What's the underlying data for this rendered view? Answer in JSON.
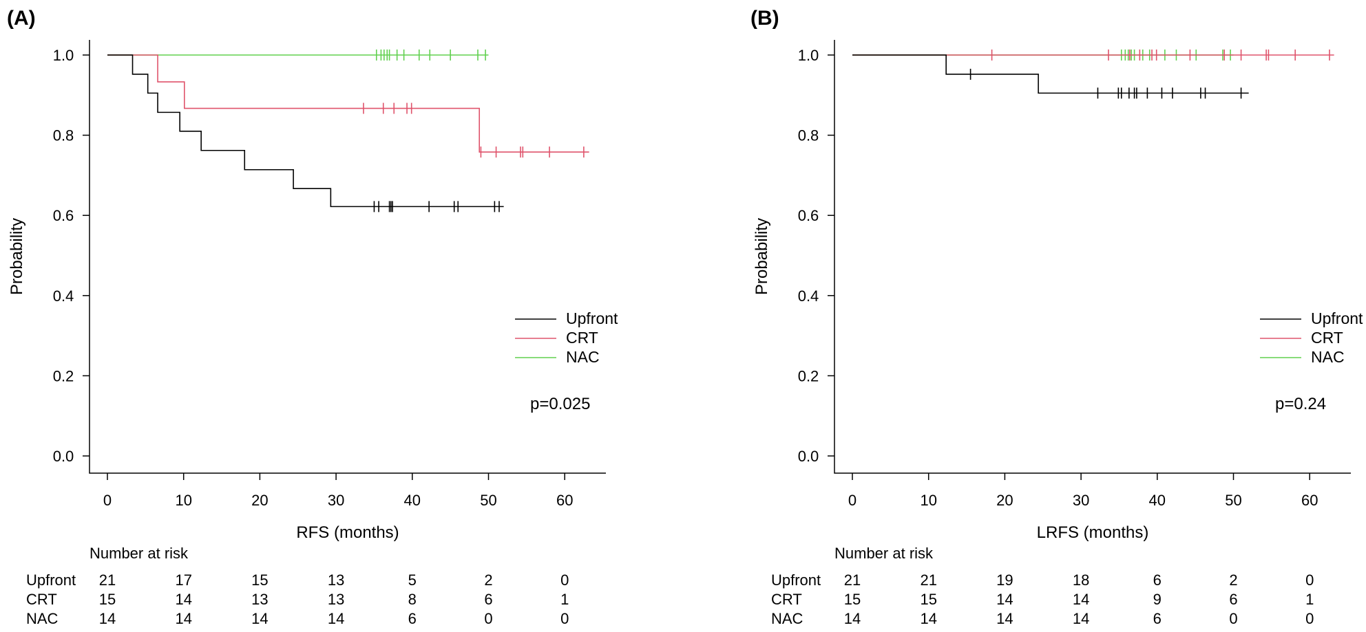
{
  "colors": {
    "Upfront": "#000000",
    "CRT": "#df536b",
    "NAC": "#61d04f"
  },
  "chart_data": [
    {
      "type": "line",
      "panel_label": "(A)",
      "xlabel": "RFS (months)",
      "ylabel": "Probability",
      "xlim": [
        0,
        65
      ],
      "ylim": [
        0,
        1.0
      ],
      "x_ticks": [
        "0",
        "10",
        "20",
        "30",
        "40",
        "50",
        "60"
      ],
      "y_ticks": [
        "0.0",
        "0.2",
        "0.4",
        "0.6",
        "0.8",
        "1.0"
      ],
      "p_value": "p=0.025",
      "legend": [
        "Upfront",
        "CRT",
        "NAC"
      ],
      "legend_position": "right",
      "series": [
        {
          "name": "Upfront",
          "steps": [
            [
              0,
              1.0
            ],
            [
              3.3,
              0.952
            ],
            [
              5.3,
              0.905
            ],
            [
              6.6,
              0.857
            ],
            [
              9.5,
              0.81
            ],
            [
              12.3,
              0.762
            ],
            [
              18,
              0.714
            ],
            [
              24.4,
              0.667
            ],
            [
              29.3,
              0.622
            ]
          ],
          "end": 52,
          "censors": [
            35,
            35.6,
            37,
            37.2,
            37.4,
            42.2,
            45.5,
            46,
            50.8,
            51.4
          ]
        },
        {
          "name": "CRT",
          "steps": [
            [
              0,
              1.0
            ],
            [
              6.6,
              0.933
            ],
            [
              10.1,
              0.867
            ],
            [
              48.8,
              0.758
            ]
          ],
          "end": 63.2,
          "censors": [
            33.6,
            36.2,
            37.6,
            39.3,
            39.9,
            49,
            51,
            54.2,
            54.5,
            58,
            62.5
          ]
        },
        {
          "name": "NAC",
          "steps": [
            [
              0,
              1.0
            ]
          ],
          "end": 50,
          "censors": [
            35.3,
            35.9,
            36.3,
            36.7,
            37,
            38,
            38.9,
            40.9,
            42.3,
            45,
            48.6,
            49.6
          ]
        }
      ],
      "risk_table": {
        "title": "Number at risk",
        "rows": [
          {
            "name": "Upfront",
            "values": [
              "21",
              "17",
              "15",
              "13",
              "5",
              "2",
              "0"
            ]
          },
          {
            "name": "CRT",
            "values": [
              "15",
              "14",
              "13",
              "13",
              "8",
              "6",
              "1"
            ]
          },
          {
            "name": "NAC",
            "values": [
              "14",
              "14",
              "14",
              "14",
              "6",
              "0",
              "0"
            ]
          }
        ]
      }
    },
    {
      "type": "line",
      "panel_label": "(B)",
      "xlabel": "LRFS (months)",
      "ylabel": "Probability",
      "xlim": [
        0,
        65
      ],
      "ylim": [
        0,
        1.0
      ],
      "x_ticks": [
        "0",
        "10",
        "20",
        "30",
        "40",
        "50",
        "60"
      ],
      "y_ticks": [
        "0.0",
        "0.2",
        "0.4",
        "0.6",
        "0.8",
        "1.0"
      ],
      "p_value": "p=0.24",
      "legend": [
        "Upfront",
        "CRT",
        "NAC"
      ],
      "legend_position": "right",
      "series": [
        {
          "name": "Upfront",
          "steps": [
            [
              0,
              1.0
            ],
            [
              12.3,
              0.952
            ],
            [
              24.4,
              0.905
            ]
          ],
          "end": 52,
          "censors": [
            15.5,
            32.2,
            34.9,
            35.3,
            36.3,
            37,
            37.3,
            38.7,
            40.6,
            42,
            45.7,
            46.3,
            51
          ]
        },
        {
          "name": "CRT",
          "steps": [
            [
              0,
              1.0
            ]
          ],
          "end": 63.2,
          "censors": [
            18.3,
            33.6,
            36.4,
            37.7,
            39.3,
            39.9,
            44.3,
            48.8,
            51,
            54.3,
            54.6,
            58.1,
            62.6
          ]
        },
        {
          "name": "NAC",
          "steps": [
            [
              0,
              1.0
            ]
          ],
          "end": 50,
          "censors": [
            35.3,
            35.8,
            36.2,
            36.6,
            37,
            38.1,
            39,
            41,
            42.5,
            45.1,
            48.6,
            49.6
          ]
        }
      ],
      "risk_table": {
        "title": "Number at risk",
        "rows": [
          {
            "name": "Upfront",
            "values": [
              "21",
              "21",
              "19",
              "18",
              "6",
              "2",
              "0"
            ]
          },
          {
            "name": "CRT",
            "values": [
              "15",
              "15",
              "14",
              "14",
              "9",
              "6",
              "1"
            ]
          },
          {
            "name": "NAC",
            "values": [
              "14",
              "14",
              "14",
              "14",
              "6",
              "0",
              "0"
            ]
          }
        ]
      }
    }
  ]
}
